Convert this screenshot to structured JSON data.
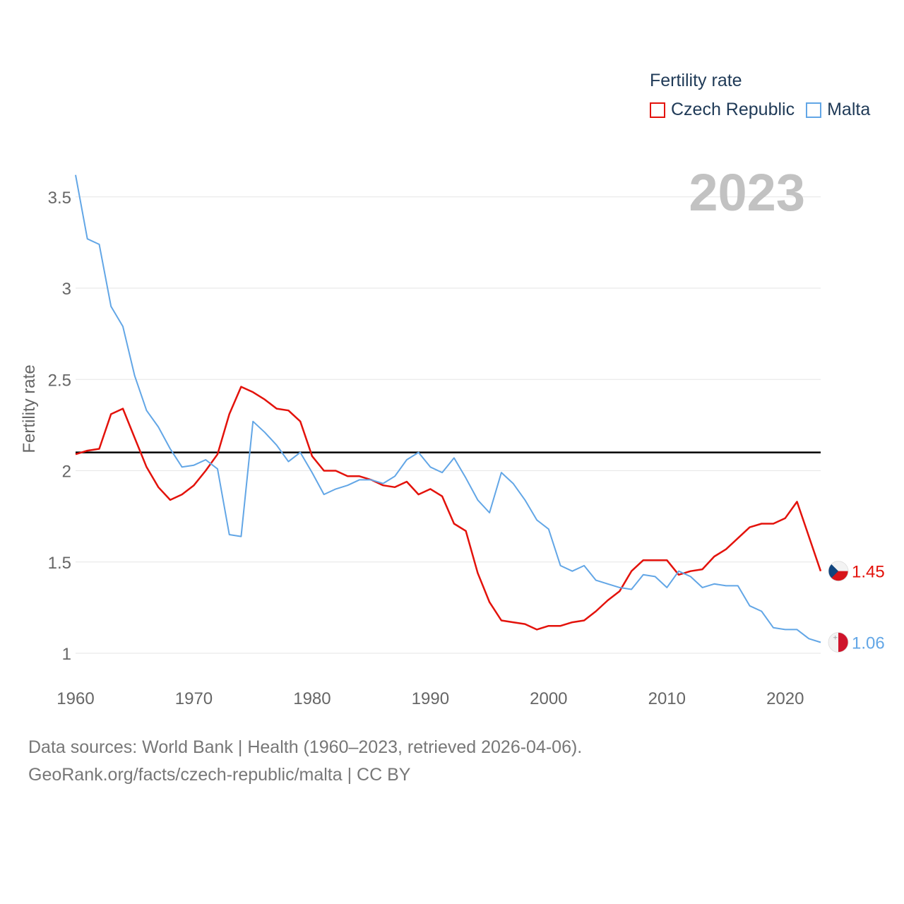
{
  "legend": {
    "title": "Fertility rate",
    "items": [
      {
        "name": "Czech Republic",
        "color": "#e3120b"
      },
      {
        "name": "Malta",
        "color": "#62a6e6"
      }
    ]
  },
  "year_label": "2023",
  "footer": {
    "line1": "Data sources: World Bank | Health (1960–2023, retrieved 2026-04-06).",
    "line2": "GeoRank.org/facts/czech-republic/malta | CC BY"
  },
  "chart_data": {
    "type": "line",
    "title": "Fertility rate",
    "xlabel": "",
    "ylabel": "Fertility rate",
    "xlim": [
      1960,
      2023
    ],
    "ylim": [
      0.85,
      3.62
    ],
    "xticks": [
      "1960",
      "1970",
      "1980",
      "1990",
      "2000",
      "2010",
      "2020"
    ],
    "yticks": [
      "1",
      "1.5",
      "2",
      "2.5",
      "3",
      "3.5"
    ],
    "reference_line": 2.1,
    "x": [
      1960,
      1961,
      1962,
      1963,
      1964,
      1965,
      1966,
      1967,
      1968,
      1969,
      1970,
      1971,
      1972,
      1973,
      1974,
      1975,
      1976,
      1977,
      1978,
      1979,
      1980,
      1981,
      1982,
      1983,
      1984,
      1985,
      1986,
      1987,
      1988,
      1989,
      1990,
      1991,
      1992,
      1993,
      1994,
      1995,
      1996,
      1997,
      1998,
      1999,
      2000,
      2001,
      2002,
      2003,
      2004,
      2005,
      2006,
      2007,
      2008,
      2009,
      2010,
      2011,
      2012,
      2013,
      2014,
      2015,
      2016,
      2017,
      2018,
      2019,
      2020,
      2021,
      2022,
      2023
    ],
    "series": [
      {
        "name": "Czech Republic",
        "color": "#e3120b",
        "end_label": "1.45",
        "values": [
          2.09,
          2.11,
          2.12,
          2.31,
          2.34,
          2.18,
          2.02,
          1.91,
          1.84,
          1.87,
          1.92,
          2.0,
          2.09,
          2.31,
          2.46,
          2.43,
          2.39,
          2.34,
          2.33,
          2.27,
          2.08,
          2.0,
          2.0,
          1.97,
          1.97,
          1.95,
          1.92,
          1.91,
          1.94,
          1.87,
          1.9,
          1.86,
          1.71,
          1.67,
          1.44,
          1.28,
          1.18,
          1.17,
          1.16,
          1.13,
          1.15,
          1.15,
          1.17,
          1.18,
          1.23,
          1.29,
          1.34,
          1.45,
          1.51,
          1.51,
          1.51,
          1.43,
          1.45,
          1.46,
          1.53,
          1.57,
          1.63,
          1.69,
          1.71,
          1.71,
          1.74,
          1.83,
          1.64,
          1.45
        ]
      },
      {
        "name": "Malta",
        "color": "#62a6e6",
        "end_label": "1.06",
        "values": [
          3.62,
          3.27,
          3.24,
          2.9,
          2.79,
          2.52,
          2.33,
          2.24,
          2.12,
          2.02,
          2.03,
          2.06,
          2.01,
          1.65,
          1.64,
          2.27,
          2.21,
          2.14,
          2.05,
          2.1,
          1.99,
          1.87,
          1.9,
          1.92,
          1.95,
          1.95,
          1.93,
          1.97,
          2.06,
          2.1,
          2.02,
          1.99,
          2.07,
          1.96,
          1.84,
          1.77,
          1.99,
          1.93,
          1.84,
          1.73,
          1.68,
          1.48,
          1.45,
          1.48,
          1.4,
          1.38,
          1.36,
          1.35,
          1.43,
          1.42,
          1.36,
          1.45,
          1.42,
          1.36,
          1.38,
          1.37,
          1.37,
          1.26,
          1.23,
          1.14,
          1.13,
          1.13,
          1.08,
          1.06
        ]
      }
    ]
  }
}
